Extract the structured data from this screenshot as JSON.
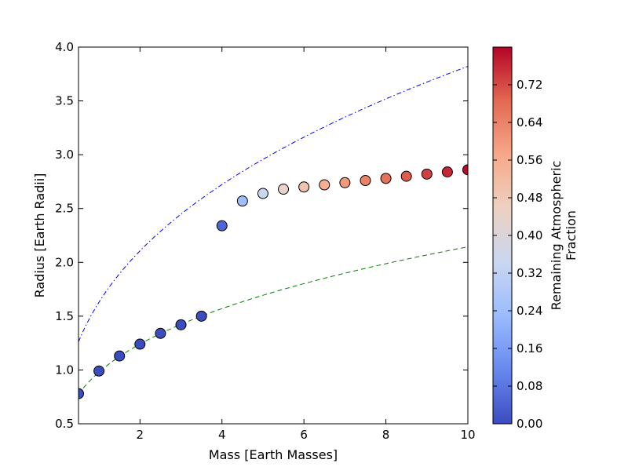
{
  "chart_data": {
    "type": "scatter",
    "xlabel": "Mass [Earth Masses]",
    "ylabel": "Radius [Earth Radii]",
    "xlim": [
      0.5,
      10
    ],
    "ylim": [
      0.5,
      4.0
    ],
    "x_ticks": [
      2,
      4,
      6,
      8,
      10
    ],
    "x_tick_labels": [
      "2",
      "4",
      "6",
      "8",
      "10"
    ],
    "y_ticks": [
      0.5,
      1.0,
      1.5,
      2.0,
      2.5,
      3.0,
      3.5,
      4.0
    ],
    "y_tick_labels": [
      "0.5",
      "1.0",
      "1.5",
      "2.0",
      "2.5",
      "3.0",
      "3.5",
      "4.0"
    ],
    "grid": false,
    "points": [
      {
        "x": 0.5,
        "y": 0.78,
        "c": 0.0
      },
      {
        "x": 1.0,
        "y": 0.99,
        "c": 0.0
      },
      {
        "x": 1.5,
        "y": 1.13,
        "c": 0.0
      },
      {
        "x": 2.0,
        "y": 1.24,
        "c": 0.0
      },
      {
        "x": 2.5,
        "y": 1.34,
        "c": 0.0
      },
      {
        "x": 3.0,
        "y": 1.42,
        "c": 0.0
      },
      {
        "x": 3.5,
        "y": 1.5,
        "c": 0.0
      },
      {
        "x": 4.0,
        "y": 2.34,
        "c": 0.05
      },
      {
        "x": 4.5,
        "y": 2.57,
        "c": 0.24
      },
      {
        "x": 5.0,
        "y": 2.64,
        "c": 0.34
      },
      {
        "x": 5.5,
        "y": 2.68,
        "c": 0.44
      },
      {
        "x": 6.0,
        "y": 2.7,
        "c": 0.5
      },
      {
        "x": 6.5,
        "y": 2.72,
        "c": 0.55
      },
      {
        "x": 7.0,
        "y": 2.74,
        "c": 0.6
      },
      {
        "x": 7.5,
        "y": 2.76,
        "c": 0.64
      },
      {
        "x": 8.0,
        "y": 2.78,
        "c": 0.67
      },
      {
        "x": 8.5,
        "y": 2.8,
        "c": 0.7
      },
      {
        "x": 9.0,
        "y": 2.82,
        "c": 0.73
      },
      {
        "x": 9.5,
        "y": 2.84,
        "c": 0.76
      },
      {
        "x": 10.0,
        "y": 2.86,
        "c": 0.79
      }
    ],
    "curves": [
      {
        "style": "dashdot",
        "color": "#0000ff",
        "coef": 1.63,
        "exp": 0.37
      },
      {
        "style": "dashed",
        "color": "#008000",
        "coef": 0.98,
        "exp": 0.34
      }
    ],
    "colorbar": {
      "label": "Remaining Atmospheric\nFraction",
      "label_lines": [
        "Remaining Atmospheric",
        "Fraction"
      ],
      "range": [
        0.0,
        0.8
      ],
      "ticks": [
        0.0,
        0.08,
        0.16,
        0.24,
        0.32,
        0.4,
        0.48,
        0.56,
        0.64,
        0.72
      ],
      "tick_labels": [
        "0.00",
        "0.08",
        "0.16",
        "0.24",
        "0.32",
        "0.40",
        "0.48",
        "0.56",
        "0.64",
        "0.72"
      ],
      "colormap": "coolwarm",
      "colormap_stops": [
        "#3b4cc0",
        "#6788ee",
        "#9abbff",
        "#c9d7f0",
        "#edd1c2",
        "#f7a889",
        "#e26952",
        "#b40426"
      ]
    }
  }
}
